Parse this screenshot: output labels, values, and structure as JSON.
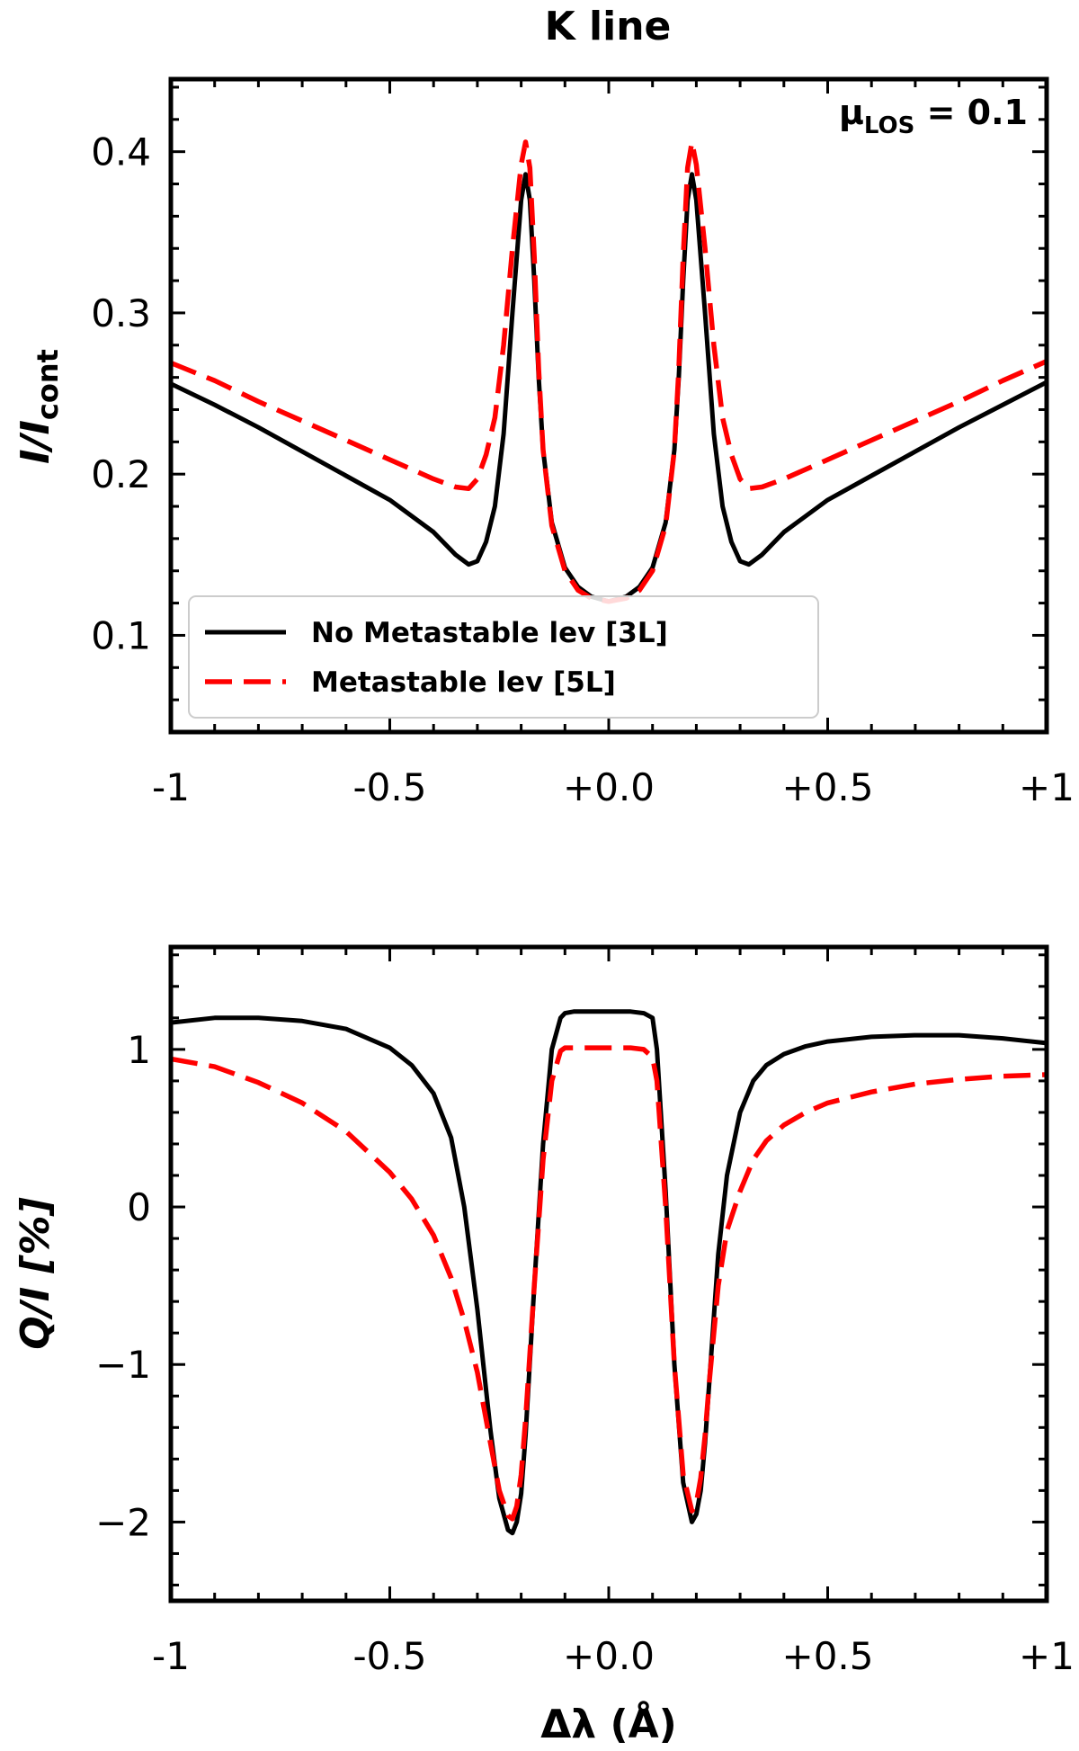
{
  "chart_data": [
    {
      "type": "line",
      "id": "top",
      "title": "K line",
      "annotation": {
        "main": "μ",
        "sub": "LOS",
        "rest": " = 0.1"
      },
      "xlabel": "",
      "ylabel": {
        "main": "I/I",
        "sub": "cont"
      },
      "xlim": [
        -1,
        1
      ],
      "ylim": [
        0.04,
        0.445
      ],
      "xticks": [
        -1,
        -0.5,
        0,
        0.5,
        1
      ],
      "xtick_labels": [
        "-1",
        "-0.5",
        "+0.0",
        "+0.5",
        "+1"
      ],
      "yticks": [
        0.1,
        0.2,
        0.3,
        0.4
      ],
      "ytick_labels": [
        "0.1",
        "0.2",
        "0.3",
        "0.4"
      ],
      "legend": {
        "position": "lower-left",
        "entries": [
          "No Metastable lev [3L]",
          "Metastable lev [5L]"
        ]
      },
      "series": [
        {
          "name": "No Metastable lev [3L]",
          "color": "#000000",
          "style": "solid",
          "x": [
            -1.0,
            -0.9,
            -0.8,
            -0.7,
            -0.6,
            -0.5,
            -0.4,
            -0.35,
            -0.32,
            -0.3,
            -0.28,
            -0.26,
            -0.24,
            -0.22,
            -0.2,
            -0.19,
            -0.18,
            -0.17,
            -0.16,
            -0.15,
            -0.13,
            -0.1,
            -0.07,
            -0.04,
            0.0,
            0.04,
            0.07,
            0.1,
            0.13,
            0.15,
            0.16,
            0.17,
            0.18,
            0.19,
            0.2,
            0.22,
            0.24,
            0.26,
            0.28,
            0.3,
            0.32,
            0.35,
            0.4,
            0.5,
            0.6,
            0.7,
            0.8,
            0.9,
            1.0
          ],
          "y": [
            0.256,
            0.243,
            0.229,
            0.214,
            0.199,
            0.184,
            0.164,
            0.15,
            0.144,
            0.146,
            0.158,
            0.18,
            0.225,
            0.3,
            0.37,
            0.386,
            0.37,
            0.32,
            0.26,
            0.215,
            0.17,
            0.142,
            0.13,
            0.124,
            0.121,
            0.124,
            0.13,
            0.142,
            0.17,
            0.215,
            0.26,
            0.32,
            0.37,
            0.386,
            0.37,
            0.3,
            0.225,
            0.18,
            0.158,
            0.146,
            0.144,
            0.15,
            0.164,
            0.184,
            0.199,
            0.214,
            0.229,
            0.243,
            0.257
          ]
        },
        {
          "name": "Metastable lev [5L]",
          "color": "#ff0000",
          "style": "dashed",
          "x": [
            -1.0,
            -0.9,
            -0.8,
            -0.7,
            -0.6,
            -0.5,
            -0.4,
            -0.35,
            -0.32,
            -0.3,
            -0.28,
            -0.26,
            -0.24,
            -0.22,
            -0.2,
            -0.19,
            -0.18,
            -0.17,
            -0.16,
            -0.15,
            -0.13,
            -0.1,
            -0.07,
            -0.04,
            0.0,
            0.04,
            0.07,
            0.1,
            0.13,
            0.15,
            0.16,
            0.17,
            0.18,
            0.19,
            0.2,
            0.22,
            0.24,
            0.26,
            0.28,
            0.3,
            0.32,
            0.35,
            0.4,
            0.5,
            0.6,
            0.7,
            0.8,
            0.9,
            1.0
          ],
          "y": [
            0.269,
            0.258,
            0.245,
            0.233,
            0.221,
            0.209,
            0.197,
            0.192,
            0.191,
            0.197,
            0.212,
            0.235,
            0.28,
            0.34,
            0.392,
            0.406,
            0.39,
            0.335,
            0.265,
            0.215,
            0.168,
            0.14,
            0.128,
            0.123,
            0.121,
            0.123,
            0.128,
            0.14,
            0.168,
            0.215,
            0.265,
            0.335,
            0.39,
            0.406,
            0.392,
            0.34,
            0.28,
            0.235,
            0.212,
            0.197,
            0.191,
            0.192,
            0.197,
            0.209,
            0.221,
            0.233,
            0.245,
            0.258,
            0.27
          ]
        }
      ]
    },
    {
      "type": "line",
      "id": "bottom",
      "title": "",
      "xlabel": "Δλ (Å)",
      "ylabel": "Q/I [%]",
      "xlim": [
        -1,
        1
      ],
      "ylim": [
        -2.5,
        1.65
      ],
      "xticks": [
        -1,
        -0.5,
        0,
        0.5,
        1
      ],
      "xtick_labels": [
        "-1",
        "-0.5",
        "+0.0",
        "+0.5",
        "+1"
      ],
      "yticks": [
        -2,
        -1,
        0,
        1
      ],
      "ytick_labels": [
        "−2",
        "−1",
        "0",
        "1"
      ],
      "series": [
        {
          "name": "No Metastable lev [3L]",
          "color": "#000000",
          "style": "solid",
          "x": [
            -1.0,
            -0.9,
            -0.8,
            -0.7,
            -0.6,
            -0.5,
            -0.45,
            -0.4,
            -0.36,
            -0.33,
            -0.3,
            -0.27,
            -0.25,
            -0.23,
            -0.22,
            -0.21,
            -0.2,
            -0.19,
            -0.17,
            -0.15,
            -0.13,
            -0.11,
            -0.1,
            -0.08,
            -0.05,
            0.0,
            0.05,
            0.08,
            0.1,
            0.11,
            0.13,
            0.15,
            0.17,
            0.19,
            0.2,
            0.21,
            0.22,
            0.23,
            0.25,
            0.27,
            0.3,
            0.33,
            0.36,
            0.4,
            0.45,
            0.5,
            0.6,
            0.7,
            0.8,
            0.9,
            1.0
          ],
          "y": [
            1.17,
            1.2,
            1.2,
            1.18,
            1.13,
            1.01,
            0.9,
            0.72,
            0.44,
            0.0,
            -0.65,
            -1.42,
            -1.85,
            -2.05,
            -2.07,
            -2.0,
            -1.82,
            -1.45,
            -0.5,
            0.4,
            1.0,
            1.2,
            1.23,
            1.24,
            1.24,
            1.24,
            1.24,
            1.23,
            1.2,
            1.0,
            0.1,
            -1.0,
            -1.75,
            -2.0,
            -1.95,
            -1.8,
            -1.5,
            -1.1,
            -0.3,
            0.2,
            0.6,
            0.8,
            0.9,
            0.97,
            1.02,
            1.05,
            1.08,
            1.09,
            1.09,
            1.07,
            1.04
          ]
        },
        {
          "name": "Metastable lev [5L]",
          "color": "#ff0000",
          "style": "dashed",
          "x": [
            -1.0,
            -0.9,
            -0.8,
            -0.7,
            -0.6,
            -0.5,
            -0.45,
            -0.4,
            -0.36,
            -0.33,
            -0.3,
            -0.27,
            -0.25,
            -0.23,
            -0.22,
            -0.21,
            -0.2,
            -0.19,
            -0.17,
            -0.15,
            -0.13,
            -0.11,
            -0.1,
            -0.08,
            -0.05,
            0.0,
            0.05,
            0.08,
            0.1,
            0.11,
            0.13,
            0.15,
            0.17,
            0.19,
            0.2,
            0.21,
            0.22,
            0.23,
            0.25,
            0.27,
            0.3,
            0.33,
            0.36,
            0.4,
            0.45,
            0.5,
            0.6,
            0.7,
            0.8,
            0.9,
            1.0
          ],
          "y": [
            0.94,
            0.89,
            0.79,
            0.66,
            0.48,
            0.22,
            0.05,
            -0.18,
            -0.45,
            -0.72,
            -1.05,
            -1.5,
            -1.8,
            -1.96,
            -1.98,
            -1.9,
            -1.7,
            -1.35,
            -0.5,
            0.3,
            0.8,
            0.99,
            1.01,
            1.01,
            1.01,
            1.01,
            1.01,
            1.0,
            0.95,
            0.8,
            0.0,
            -1.0,
            -1.7,
            -1.93,
            -1.88,
            -1.72,
            -1.45,
            -1.1,
            -0.5,
            -0.15,
            0.1,
            0.3,
            0.42,
            0.52,
            0.6,
            0.66,
            0.73,
            0.78,
            0.81,
            0.83,
            0.84
          ]
        }
      ]
    }
  ]
}
